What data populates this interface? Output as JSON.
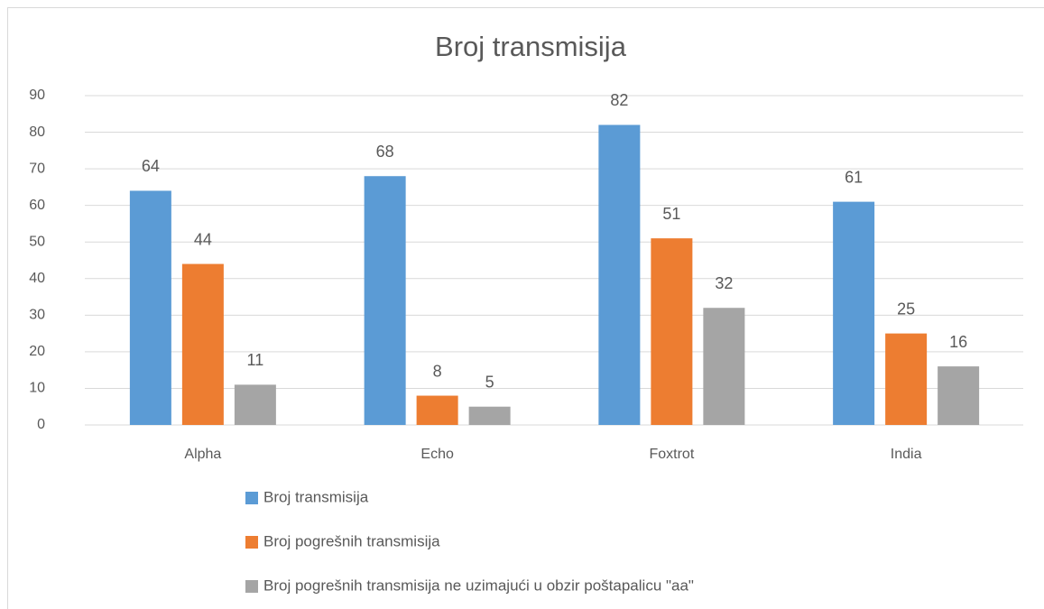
{
  "chart_data": {
    "type": "bar",
    "title": "Broj transmisija",
    "categories": [
      "Alpha",
      "Echo",
      "Foxtrot",
      "India"
    ],
    "series": [
      {
        "name": "Broj transmisija",
        "color": "#5b9bd5",
        "values": [
          64,
          68,
          82,
          61
        ]
      },
      {
        "name": "Broj pogrešnih transmisija",
        "color": "#ed7d31",
        "values": [
          44,
          8,
          51,
          25
        ]
      },
      {
        "name": "Broj pogrešnih transmisija ne uzimajući u obzir poštapalicu \"aa\"",
        "color": "#a5a5a5",
        "values": [
          11,
          5,
          32,
          16
        ]
      }
    ],
    "ylim": [
      0,
      90
    ],
    "yticks": [
      0,
      10,
      20,
      30,
      40,
      50,
      60,
      70,
      80,
      90
    ],
    "grid": true,
    "legend": "bottom"
  }
}
